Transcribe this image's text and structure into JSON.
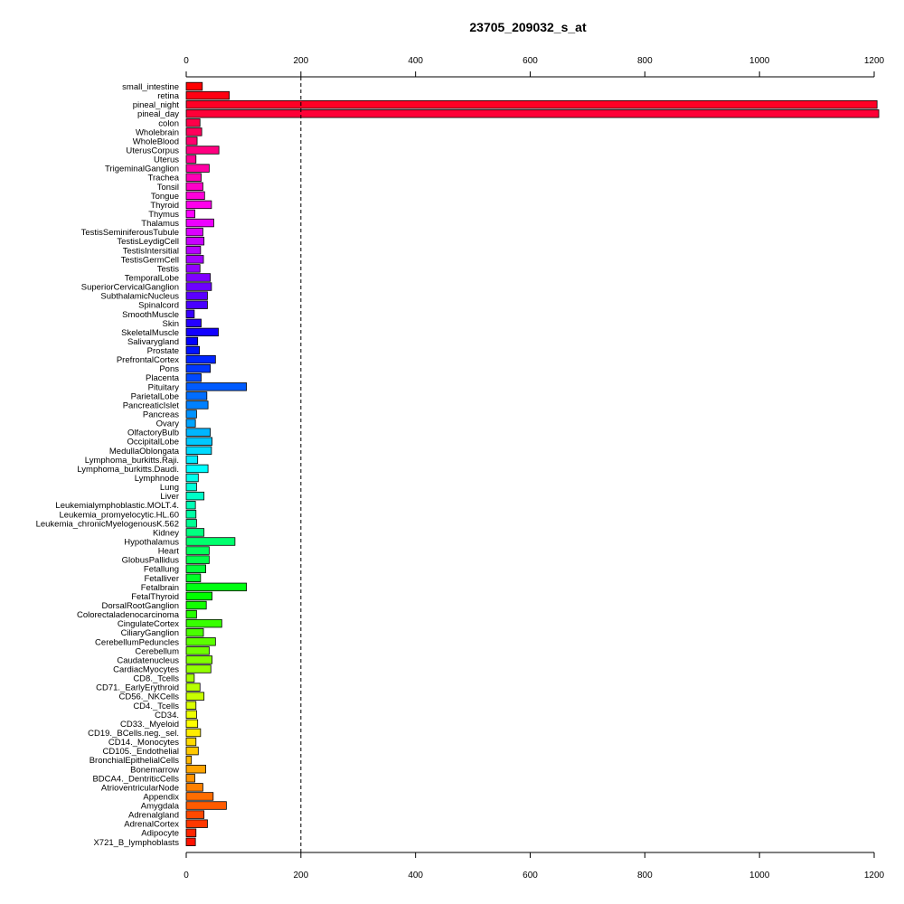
{
  "chart_data": {
    "type": "bar",
    "orientation": "horizontal",
    "title": "23705_209032_s_at",
    "xlim": [
      0,
      1200
    ],
    "xticks": [
      0,
      200,
      400,
      600,
      800,
      1000,
      1200
    ],
    "reference_line": 200,
    "grid": false,
    "categories": [
      "small_intestine",
      "retina",
      "pineal_night",
      "pineal_day",
      "colon",
      "Wholebrain",
      "WholeBlood",
      "UterusCorpus",
      "Uterus",
      "TrigeminalGanglion",
      "Trachea",
      "Tonsil",
      "Tongue",
      "Thyroid",
      "Thymus",
      "Thalamus",
      "TestisSeminiferousTubule",
      "TestisLeydigCell",
      "TestisIntersitial",
      "TestisGermCell",
      "Testis",
      "TemporalLobe",
      "SuperiorCervicalGanglion",
      "SubthalamicNucleus",
      "Spinalcord",
      "SmoothMuscle",
      "Skin",
      "SkeletalMuscle",
      "Salivarygland",
      "Prostate",
      "PrefrontalCortex",
      "Pons",
      "Placenta",
      "Pituitary",
      "ParietalLobe",
      "PancreaticIslet",
      "Pancreas",
      "Ovary",
      "OlfactoryBulb",
      "OccipitalLobe",
      "MedullaOblongata",
      "Lymphoma_burkitts.Raji.",
      "Lymphoma_burkitts.Daudi.",
      "Lymphnode",
      "Lung",
      "Liver",
      "Leukemialymphoblastic.MOLT.4.",
      "Leukemia_promyelocytic.HL.60",
      "Leukemia_chronicMyelogenousK.562",
      "Kidney",
      "Hypothalamus",
      "Heart",
      "GlobusPallidus",
      "Fetallung",
      "Fetalliver",
      "Fetalbrain",
      "FetalThyroid",
      "DorsalRootGanglion",
      "Colorectaladenocarcinoma",
      "CingulateCortex",
      "CiliaryGanglion",
      "CerebellumPeduncles",
      "Cerebellum",
      "Caudatenucleus",
      "CardiacMyocytes",
      "CD8._Tcells",
      "CD71._EarlyErythroid",
      "CD56._NKCells",
      "CD4._Tcells",
      "CD34.",
      "CD33._Myeloid",
      "CD19._BCells.neg._sel.",
      "CD14._Monocytes",
      "CD105._Endothelial",
      "BronchialEpithelialCells",
      "Bonemarrow",
      "BDCA4._DentriticCells",
      "AtrioventricularNode",
      "Appendix",
      "Amygdala",
      "Adrenalgland",
      "AdrenalCortex",
      "Adipocyte",
      "X721_B_lymphoblasts"
    ],
    "values": [
      28,
      75,
      1205,
      1208,
      24,
      27,
      19,
      57,
      17,
      40,
      26,
      29,
      32,
      44,
      15,
      48,
      29,
      31,
      25,
      30,
      24,
      42,
      44,
      37,
      37,
      14,
      26,
      56,
      20,
      23,
      51,
      42,
      26,
      105,
      36,
      38,
      18,
      16,
      42,
      45,
      44,
      20,
      38,
      21,
      18,
      31,
      16,
      17,
      18,
      31,
      85,
      40,
      40,
      34,
      25,
      105,
      45,
      35,
      18,
      62,
      30,
      51,
      40,
      45,
      43,
      14,
      24,
      31,
      17,
      18,
      20,
      25,
      17,
      21,
      9,
      34,
      15,
      29,
      47,
      70,
      31,
      37,
      17,
      16
    ]
  }
}
